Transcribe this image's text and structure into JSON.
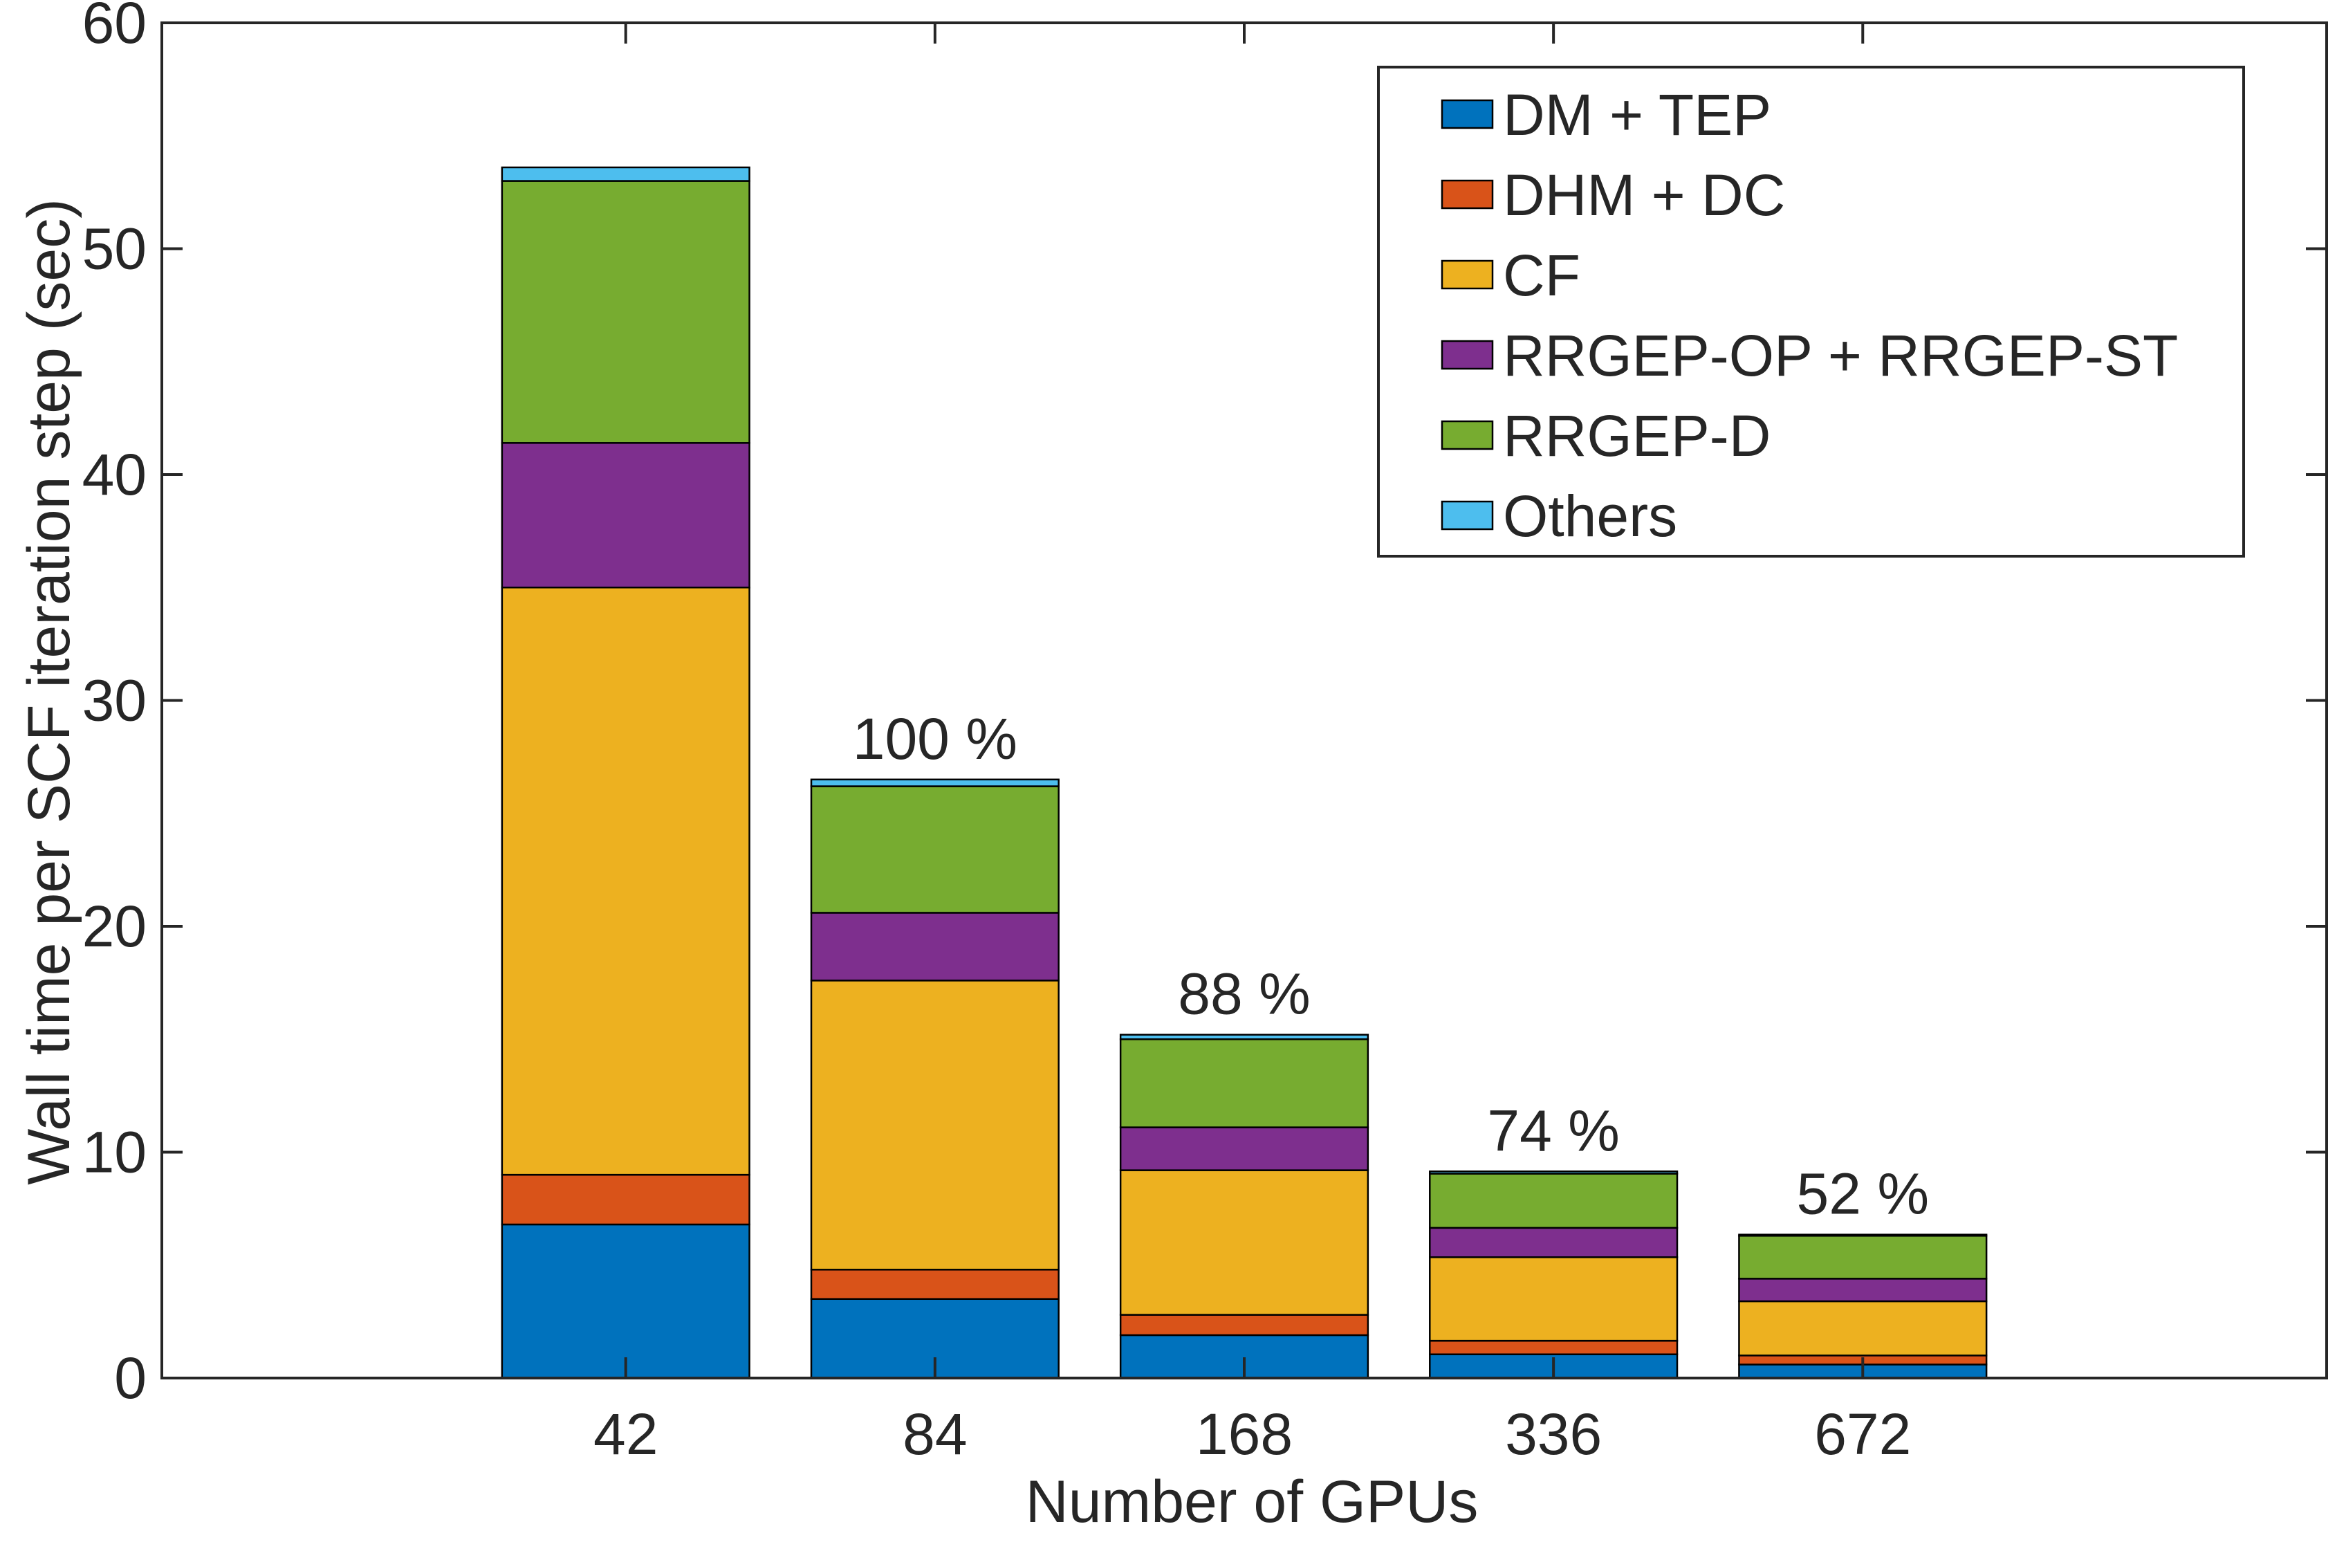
{
  "chart_data": {
    "type": "bar",
    "stacked": true,
    "title": "",
    "xlabel": "Number of GPUs",
    "ylabel": "Wall time per SCF iteration step (sec)",
    "categories": [
      "42",
      "84",
      "168",
      "336",
      "672"
    ],
    "ylim": [
      0,
      60
    ],
    "yticks": [
      0,
      10,
      20,
      30,
      40,
      50,
      60
    ],
    "grid": false,
    "legend_position": "top-right",
    "series": [
      {
        "name": "DM + TEP",
        "color": "#0072BD",
        "values": [
          6.8,
          3.5,
          1.9,
          1.05,
          0.6
        ]
      },
      {
        "name": "DHM + DC",
        "color": "#D95319",
        "values": [
          2.2,
          1.3,
          0.9,
          0.6,
          0.4
        ]
      },
      {
        "name": "CF",
        "color": "#EDB120",
        "values": [
          26.0,
          12.8,
          6.4,
          3.7,
          2.4
        ]
      },
      {
        "name": "RRGEP-OP + RRGEP-ST",
        "color": "#7E2F8E",
        "values": [
          6.4,
          3.0,
          1.9,
          1.3,
          1.0
        ]
      },
      {
        "name": "RRGEP-D",
        "color": "#77AC30",
        "values": [
          11.6,
          5.6,
          3.9,
          2.4,
          1.9
        ]
      },
      {
        "name": "Others",
        "color": "#4DBEEE",
        "values": [
          0.6,
          0.3,
          0.2,
          0.1,
          0.05
        ]
      }
    ],
    "annotations": [
      {
        "category": "84",
        "text": "100 %"
      },
      {
        "category": "168",
        "text": "88 %"
      },
      {
        "category": "336",
        "text": "74 %"
      },
      {
        "category": "672",
        "text": "52 %"
      }
    ]
  }
}
